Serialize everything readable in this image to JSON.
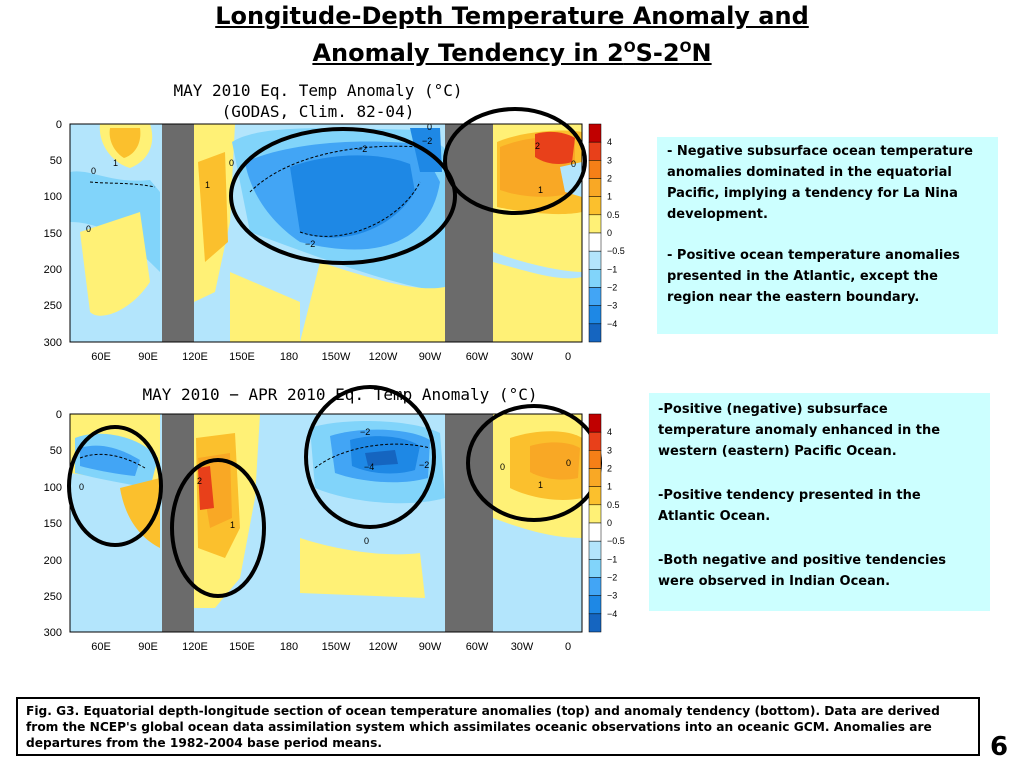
{
  "slide": {
    "title_line1": "Longitude-Depth Temperature Anomaly and",
    "title_line2_pre": "Anomaly Tendency in 2",
    "title_sup1": "O",
    "title_mid": "S-2",
    "title_sup2": "O",
    "title_post": "N",
    "page_number": "6",
    "caption": "Fig. G3. Equatorial depth-longitude section of ocean temperature anomalies (top) and anomaly tendency (bottom). Data are derived from the NCEP's global ocean data assimilation system which assimilates oceanic observations into an oceanic GCM. Anomalies are departures from the 1982-2004 base period means."
  },
  "colorbar": {
    "levels": [
      "4",
      "3",
      "2",
      "1",
      "0.5",
      "0",
      "−0.5",
      "−1",
      "−2",
      "−3",
      "−4"
    ],
    "colors": [
      "#c00000",
      "#e8401a",
      "#f57f17",
      "#f9a825",
      "#fbc02d",
      "#fff176",
      "#ffffff",
      "#b3e5fc",
      "#81d4fa",
      "#42a5f5",
      "#1e88e5",
      "#1565c0"
    ]
  },
  "chart_data": [
    {
      "type": "heatmap",
      "title": "MAY 2010 Eq. Temp Anomaly (°C)",
      "subtitle": "(GODAS, Clim. 82-04)",
      "xticklabels": [
        "60E",
        "90E",
        "120E",
        "150E",
        "180",
        "150W",
        "120W",
        "90W",
        "60W",
        "30W",
        "0"
      ],
      "yticklabels": [
        "0",
        "50",
        "100",
        "150",
        "200",
        "250",
        "300"
      ],
      "ylim": [
        0,
        300
      ],
      "contour_labels": [
        "0",
        "1",
        "0",
        "1",
        "0",
        "−2",
        "−2",
        "−2",
        "0",
        "2",
        "1",
        "0"
      ]
    },
    {
      "type": "heatmap",
      "title": "MAY 2010 − APR 2010 Eq. Temp Anomaly (°C)",
      "xticklabels": [
        "60E",
        "90E",
        "120E",
        "150E",
        "180",
        "150W",
        "120W",
        "90W",
        "60W",
        "30W",
        "0"
      ],
      "yticklabels": [
        "0",
        "50",
        "100",
        "150",
        "200",
        "250",
        "300"
      ],
      "ylim": [
        0,
        300
      ],
      "contour_labels": [
        "0",
        "2",
        "1",
        "−2",
        "−4",
        "−2",
        "0",
        "0",
        "1",
        "0"
      ]
    }
  ],
  "notes_top": {
    "line1": "- Negative  subsurface ocean temperature anomalies dominated in the equatorial Pacific, implying a tendency for La Nina development.",
    "line2": "- Positive ocean temperature anomalies presented  in the Atlantic, except the region near the eastern boundary."
  },
  "notes_bottom": {
    "line1": "-Positive (negative) subsurface temperature anomaly enhanced in the western (eastern) Pacific Ocean.",
    "line2": "-Positive tendency presented in the Atlantic Ocean.",
    "line3": "-Both negative and positive tendencies were observed in Indian Ocean."
  }
}
